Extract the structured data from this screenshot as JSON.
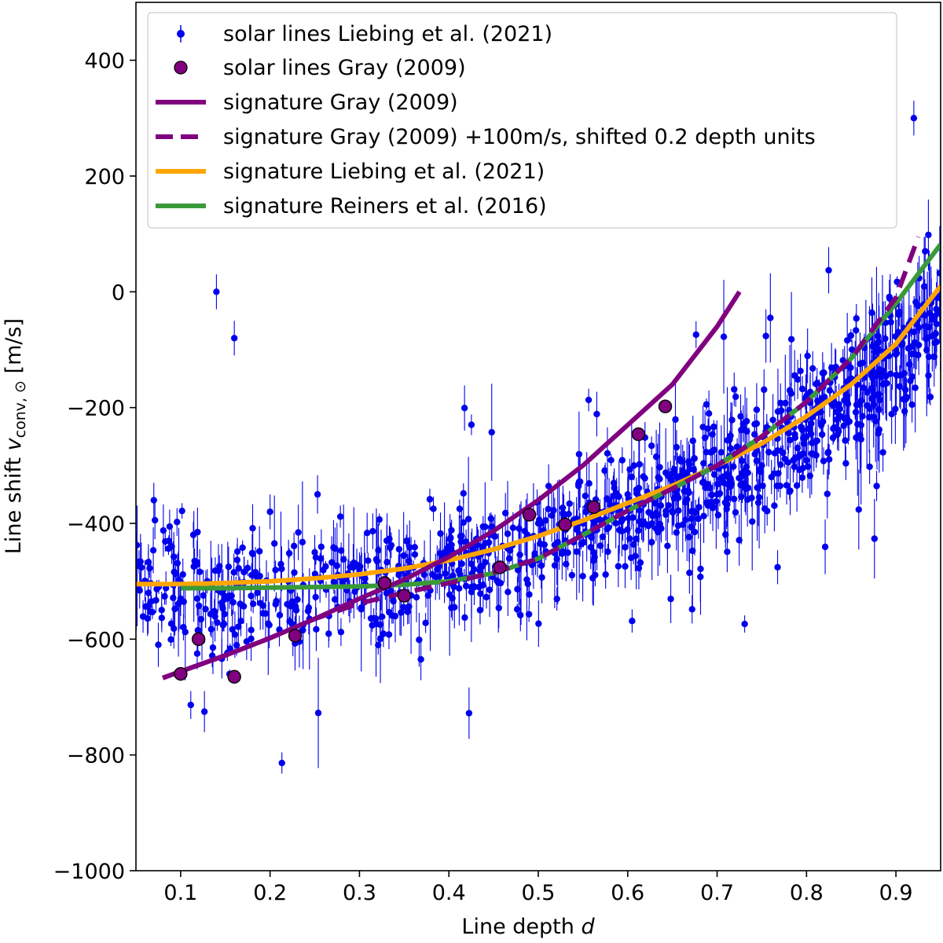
{
  "chart_data": {
    "type": "scatter",
    "xlabel": "Line depth",
    "xlabel_symbol": "d",
    "ylabel": "Line shift",
    "ylabel_symbol": "v",
    "ylabel_subscript": "conv, ⊙",
    "ylabel_unit": "[m/s]",
    "xlim": [
      0.05,
      0.95
    ],
    "ylim": [
      -1000,
      500
    ],
    "xticks": [
      0.1,
      0.2,
      0.3,
      0.4,
      0.5,
      0.6,
      0.7,
      0.8,
      0.9
    ],
    "xtick_labels": [
      "0.1",
      "0.2",
      "0.3",
      "0.4",
      "0.5",
      "0.6",
      "0.7",
      "0.8",
      "0.9"
    ],
    "yticks": [
      -1000,
      -800,
      -600,
      -400,
      -200,
      0,
      200,
      400
    ],
    "ytick_labels": [
      "−1000",
      "−800",
      "−600",
      "−400",
      "−200",
      "0",
      "200",
      "400"
    ],
    "legend_position": "top-left",
    "colors": {
      "liebing_points": "#0000ee",
      "gray_points": "#800080",
      "gray_signature": "#800080",
      "liebing_signature": "#ffa500",
      "reiners_signature": "#3a9a3a"
    },
    "series": [
      {
        "name": "solar lines Liebing et al. (2021)",
        "kind": "errorbar-scatter",
        "approx_count": 1100,
        "trend": "scattered around signature, rising from about -500 m/s at d=0.1 to about 0 m/s at d=0.9",
        "representative_points": [
          {
            "x": 0.07,
            "y": -360
          },
          {
            "x": 0.09,
            "y": -440
          },
          {
            "x": 0.1,
            "y": -530
          },
          {
            "x": 0.14,
            "y": 0
          },
          {
            "x": 0.16,
            "y": -80
          },
          {
            "x": 0.2,
            "y": -380
          },
          {
            "x": 0.25,
            "y": -450
          },
          {
            "x": 0.3,
            "y": -480
          },
          {
            "x": 0.35,
            "y": -500
          },
          {
            "x": 0.4,
            "y": -440
          },
          {
            "x": 0.45,
            "y": -420
          },
          {
            "x": 0.5,
            "y": -400
          },
          {
            "x": 0.55,
            "y": -400
          },
          {
            "x": 0.6,
            "y": -350
          },
          {
            "x": 0.65,
            "y": -330
          },
          {
            "x": 0.7,
            "y": -350
          },
          {
            "x": 0.75,
            "y": -300
          },
          {
            "x": 0.8,
            "y": -250
          },
          {
            "x": 0.85,
            "y": -150
          },
          {
            "x": 0.9,
            "y": -100
          },
          {
            "x": 0.92,
            "y": 300
          }
        ]
      },
      {
        "name": "solar lines Gray (2009)",
        "kind": "scatter",
        "x": [
          0.1,
          0.12,
          0.16,
          0.228,
          0.328,
          0.35,
          0.457,
          0.49,
          0.53,
          0.562,
          0.612,
          0.642
        ],
        "y": [
          -660,
          -600,
          -665,
          -594,
          -503,
          -525,
          -476,
          -385,
          -402,
          -372,
          -246,
          -198
        ]
      },
      {
        "name": "signature Gray (2009)",
        "kind": "line",
        "style": "solid",
        "x": [
          0.08,
          0.15,
          0.2,
          0.25,
          0.3,
          0.35,
          0.4,
          0.45,
          0.5,
          0.55,
          0.6,
          0.65,
          0.7,
          0.725
        ],
        "y": [
          -667,
          -628,
          -598,
          -565,
          -530,
          -497,
          -458,
          -413,
          -360,
          -300,
          -230,
          -160,
          -60,
          0
        ]
      },
      {
        "name": "signature Gray (2009) +100m/s, shifted 0.2 depth units",
        "kind": "line",
        "style": "dashed",
        "x": [
          0.08,
          0.15,
          0.2,
          0.25,
          0.3,
          0.35,
          0.4,
          0.45,
          0.5,
          0.55,
          0.6,
          0.65,
          0.7,
          0.75,
          0.8,
          0.85,
          0.9,
          0.925
        ],
        "y": [
          -667,
          -628,
          -598,
          -565,
          -538,
          -520,
          -503,
          -485,
          -461,
          -420,
          -378,
          -340,
          -300,
          -250,
          -190,
          -115,
          -10,
          95
        ]
      },
      {
        "name": "signature Liebing et al. (2021)",
        "kind": "line",
        "style": "solid",
        "x": [
          0.05,
          0.1,
          0.15,
          0.2,
          0.25,
          0.3,
          0.35,
          0.4,
          0.45,
          0.5,
          0.55,
          0.6,
          0.65,
          0.7,
          0.75,
          0.8,
          0.85,
          0.9,
          0.95
        ],
        "y": [
          -505,
          -505,
          -503,
          -500,
          -495,
          -488,
          -478,
          -464,
          -445,
          -422,
          -395,
          -365,
          -335,
          -300,
          -262,
          -215,
          -160,
          -90,
          10
        ]
      },
      {
        "name": "signature Reiners et al. (2016)",
        "kind": "line",
        "style": "solid",
        "x": [
          0.1,
          0.15,
          0.2,
          0.25,
          0.3,
          0.35,
          0.4,
          0.45,
          0.5,
          0.55,
          0.6,
          0.65,
          0.7,
          0.75,
          0.8,
          0.85,
          0.9,
          0.95
        ],
        "y": [
          -512,
          -512,
          -511,
          -510,
          -509,
          -506,
          -500,
          -486,
          -461,
          -420,
          -378,
          -340,
          -300,
          -250,
          -190,
          -115,
          -20,
          82
        ]
      }
    ]
  }
}
